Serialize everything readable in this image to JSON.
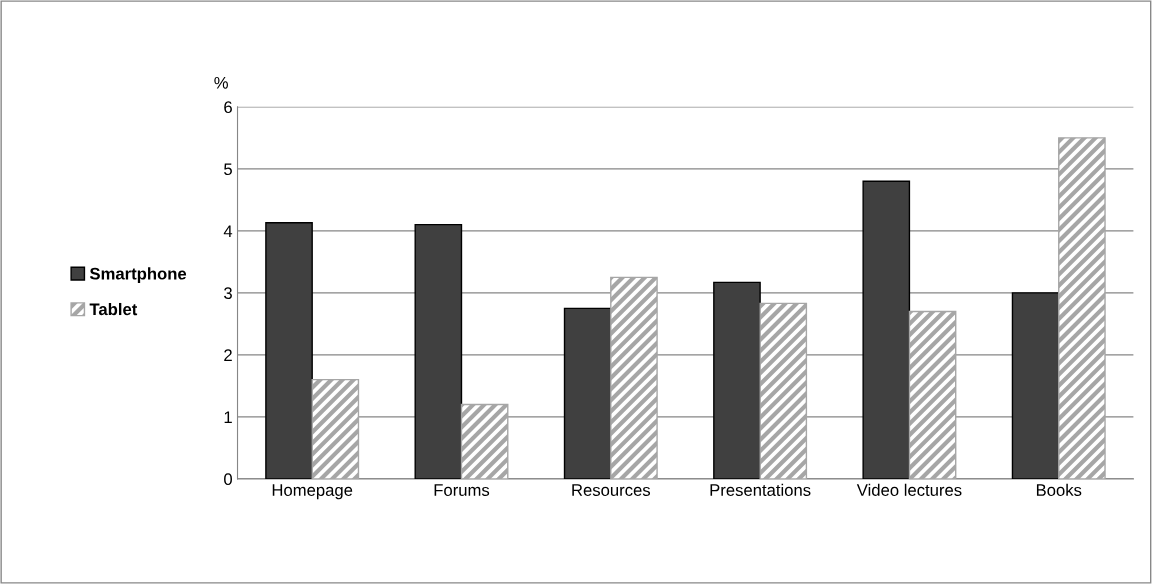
{
  "chart_data": {
    "type": "bar",
    "ylabel": "%",
    "categories": [
      "Homepage",
      "Forums",
      "Resources",
      "Presentations",
      "Video lectures",
      "Books"
    ],
    "series": [
      {
        "name": "Smartphone",
        "color": "#404040",
        "values": [
          4.13,
          4.1,
          2.75,
          3.17,
          4.8,
          3.0
        ]
      },
      {
        "name": "Tablet",
        "color": "#a6a6a6",
        "values": [
          1.6,
          1.2,
          3.25,
          2.83,
          2.7,
          5.5
        ]
      }
    ],
    "ylim": [
      0,
      6
    ],
    "yticks": [
      0,
      1,
      2,
      3,
      4,
      5,
      6
    ],
    "grid": "y",
    "legend": "left"
  }
}
